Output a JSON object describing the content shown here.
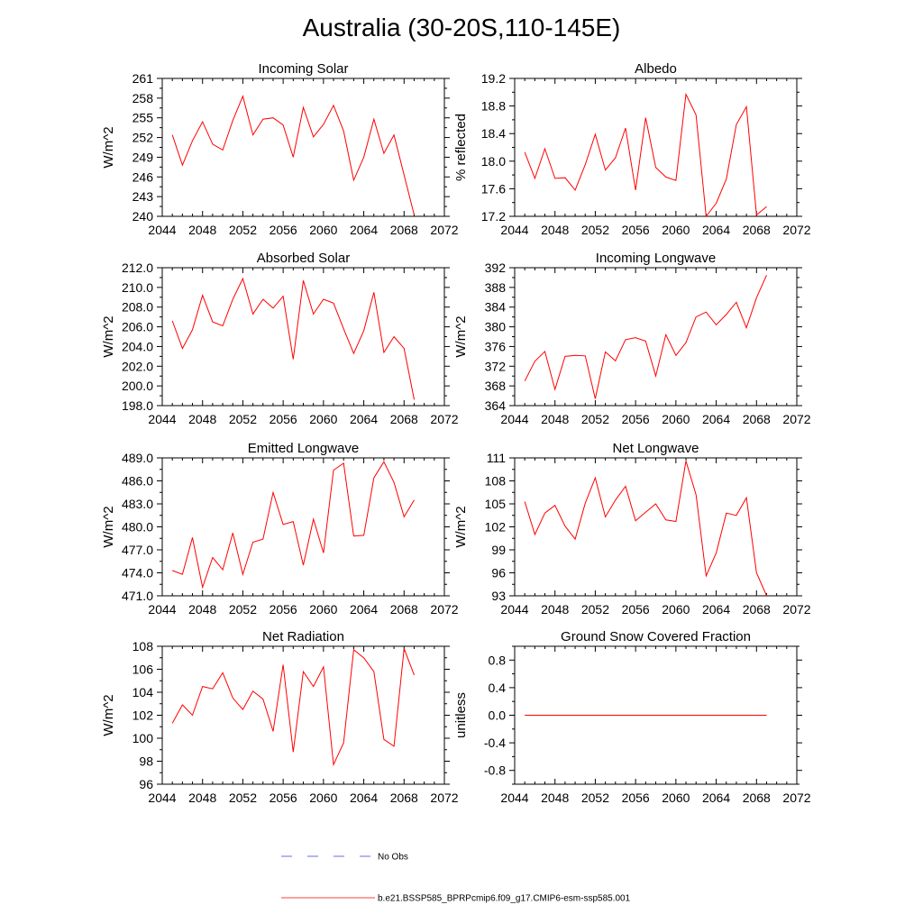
{
  "figure": {
    "title": "Australia (30-20S,110-145E)"
  },
  "legend": {
    "obs_label": "No Obs",
    "obs_color": "#3b3bd6",
    "model_label": "b.e21.BSSP585_BPRPcmip6.f09_g17.CMIP6-esm-ssp585.001",
    "model_color": "#ff0000"
  },
  "chart_data": [
    {
      "type": "line",
      "title": "Incoming Solar",
      "ylabel": "W/m^2",
      "xlim": [
        2044,
        2072
      ],
      "xticks": [
        2044,
        2048,
        2052,
        2056,
        2060,
        2064,
        2068,
        2072
      ],
      "ylim": [
        240,
        261
      ],
      "yticks": [
        "240",
        "243",
        "246",
        "249",
        "252",
        "255",
        "258",
        "261"
      ],
      "series": [
        {
          "x": [
            2045,
            2046,
            2047,
            2048,
            2049,
            2050,
            2051,
            2052,
            2053,
            2054,
            2055,
            2056,
            2057,
            2058,
            2059,
            2060,
            2061,
            2062,
            2063,
            2064,
            2065,
            2066,
            2067,
            2068,
            2069
          ],
          "values": [
            252.4,
            247.8,
            251.5,
            254.4,
            251.0,
            250.1,
            254.6,
            258.3,
            252.4,
            254.8,
            255.0,
            253.9,
            249.0,
            256.6,
            252.1,
            254.0,
            256.9,
            253.0,
            245.5,
            249.0,
            254.8,
            249.6,
            252.4,
            246.3,
            240.2
          ]
        }
      ]
    },
    {
      "type": "line",
      "title": "Albedo",
      "ylabel": "% reflected",
      "xlim": [
        2044,
        2072
      ],
      "xticks": [
        2044,
        2048,
        2052,
        2056,
        2060,
        2064,
        2068,
        2072
      ],
      "ylim": [
        17.2,
        19.2
      ],
      "yticks": [
        "17.2",
        "17.6",
        "18.0",
        "18.4",
        "18.8",
        "19.2"
      ],
      "series": [
        {
          "x": [
            2045,
            2046,
            2047,
            2048,
            2049,
            2050,
            2051,
            2052,
            2053,
            2054,
            2055,
            2056,
            2057,
            2058,
            2059,
            2060,
            2061,
            2062,
            2063,
            2064,
            2065,
            2066,
            2067,
            2068,
            2069
          ],
          "values": [
            18.13,
            17.75,
            18.18,
            17.75,
            17.76,
            17.58,
            17.95,
            18.39,
            17.87,
            18.05,
            18.48,
            17.58,
            18.63,
            17.91,
            17.77,
            17.72,
            18.97,
            18.67,
            17.2,
            17.39,
            17.74,
            18.53,
            18.79,
            17.22,
            17.34
          ]
        }
      ]
    },
    {
      "type": "line",
      "title": "Absorbed Solar",
      "ylabel": "W/m^2",
      "xlim": [
        2044,
        2072
      ],
      "xticks": [
        2044,
        2048,
        2052,
        2056,
        2060,
        2064,
        2068,
        2072
      ],
      "ylim": [
        198.0,
        212.0
      ],
      "yticks": [
        "198.0",
        "200.0",
        "202.0",
        "204.0",
        "206.0",
        "208.0",
        "210.0",
        "212.0"
      ],
      "series": [
        {
          "x": [
            2045,
            2046,
            2047,
            2048,
            2049,
            2050,
            2051,
            2052,
            2053,
            2054,
            2055,
            2056,
            2057,
            2058,
            2059,
            2060,
            2061,
            2062,
            2063,
            2064,
            2065,
            2066,
            2067,
            2068,
            2069
          ],
          "values": [
            206.6,
            203.8,
            205.7,
            209.2,
            206.5,
            206.1,
            208.8,
            210.9,
            207.3,
            208.8,
            207.9,
            209.1,
            202.7,
            210.7,
            207.3,
            208.8,
            208.4,
            205.8,
            203.3,
            205.6,
            209.5,
            203.4,
            205.0,
            203.8,
            198.6
          ]
        }
      ]
    },
    {
      "type": "line",
      "title": "Incoming Longwave",
      "ylabel": "W/m^2",
      "xlim": [
        2044,
        2072
      ],
      "xticks": [
        2044,
        2048,
        2052,
        2056,
        2060,
        2064,
        2068,
        2072
      ],
      "ylim": [
        364,
        392
      ],
      "yticks": [
        "364",
        "368",
        "372",
        "376",
        "380",
        "384",
        "388",
        "392"
      ],
      "series": [
        {
          "x": [
            2045,
            2046,
            2047,
            2048,
            2049,
            2050,
            2051,
            2052,
            2053,
            2054,
            2055,
            2056,
            2057,
            2058,
            2059,
            2060,
            2061,
            2062,
            2063,
            2064,
            2065,
            2066,
            2067,
            2068,
            2069
          ],
          "values": [
            369.0,
            373.0,
            375.0,
            367.3,
            374.0,
            374.2,
            374.1,
            365.4,
            374.9,
            373.1,
            377.4,
            377.8,
            377.1,
            370.0,
            378.4,
            374.2,
            376.8,
            382.0,
            383.0,
            380.4,
            382.5,
            385.0,
            379.8,
            385.9,
            390.5
          ]
        }
      ]
    },
    {
      "type": "line",
      "title": "Emitted Longwave",
      "ylabel": "W/m^2",
      "xlim": [
        2044,
        2072
      ],
      "xticks": [
        2044,
        2048,
        2052,
        2056,
        2060,
        2064,
        2068,
        2072
      ],
      "ylim": [
        471.0,
        489.0
      ],
      "yticks": [
        "471.0",
        "474.0",
        "477.0",
        "480.0",
        "483.0",
        "486.0",
        "489.0"
      ],
      "series": [
        {
          "x": [
            2045,
            2046,
            2047,
            2048,
            2049,
            2050,
            2051,
            2052,
            2053,
            2054,
            2055,
            2056,
            2057,
            2058,
            2059,
            2060,
            2061,
            2062,
            2063,
            2064,
            2065,
            2066,
            2067,
            2068,
            2069
          ],
          "values": [
            474.3,
            473.8,
            478.6,
            472.1,
            476.0,
            474.4,
            479.2,
            473.8,
            478.0,
            478.4,
            484.5,
            480.3,
            480.7,
            475.0,
            481.0,
            476.6,
            487.4,
            488.3,
            478.8,
            478.9,
            486.4,
            488.5,
            485.8,
            481.3,
            483.5
          ]
        }
      ]
    },
    {
      "type": "line",
      "title": "Net Longwave",
      "ylabel": "W/m^2",
      "xlim": [
        2044,
        2072
      ],
      "xticks": [
        2044,
        2048,
        2052,
        2056,
        2060,
        2064,
        2068,
        2072
      ],
      "ylim": [
        93,
        111
      ],
      "yticks": [
        "93",
        "96",
        "99",
        "102",
        "105",
        "108",
        "111"
      ],
      "series": [
        {
          "x": [
            2045,
            2046,
            2047,
            2048,
            2049,
            2050,
            2051,
            2052,
            2053,
            2054,
            2055,
            2056,
            2057,
            2058,
            2059,
            2060,
            2061,
            2062,
            2063,
            2064,
            2065,
            2066,
            2067,
            2068,
            2069
          ],
          "values": [
            105.3,
            101.0,
            103.8,
            104.8,
            102.1,
            100.4,
            105.1,
            108.4,
            103.3,
            105.5,
            107.3,
            102.8,
            103.9,
            105.0,
            102.9,
            102.7,
            110.6,
            106.2,
            95.6,
            98.6,
            103.8,
            103.5,
            105.8,
            96.0,
            93.0
          ]
        }
      ]
    },
    {
      "type": "line",
      "title": "Net Radiation",
      "ylabel": "W/m^2",
      "xlim": [
        2044,
        2072
      ],
      "xticks": [
        2044,
        2048,
        2052,
        2056,
        2060,
        2064,
        2068,
        2072
      ],
      "ylim": [
        96,
        108
      ],
      "yticks": [
        "96",
        "98",
        "100",
        "102",
        "104",
        "106",
        "108"
      ],
      "series": [
        {
          "x": [
            2045,
            2046,
            2047,
            2048,
            2049,
            2050,
            2051,
            2052,
            2053,
            2054,
            2055,
            2056,
            2057,
            2058,
            2059,
            2060,
            2061,
            2062,
            2063,
            2064,
            2065,
            2066,
            2067,
            2068,
            2069
          ],
          "values": [
            101.3,
            102.9,
            102.0,
            104.5,
            104.3,
            105.7,
            103.5,
            102.5,
            104.1,
            103.4,
            100.6,
            106.4,
            98.8,
            105.8,
            104.5,
            106.2,
            97.7,
            99.6,
            107.7,
            107.0,
            105.8,
            99.9,
            99.3,
            107.8,
            105.5
          ]
        }
      ]
    },
    {
      "type": "line",
      "title": "Ground Snow Covered Fraction",
      "ylabel": "unitless",
      "xlim": [
        2044,
        2072
      ],
      "xticks": [
        2044,
        2048,
        2052,
        2056,
        2060,
        2064,
        2068,
        2072
      ],
      "ylim": [
        -1.0,
        1.0
      ],
      "yticks": [
        "-0.8",
        "-0.4",
        "0.0",
        "0.4",
        "0.8"
      ],
      "series": [
        {
          "x": [
            2045,
            2046,
            2047,
            2048,
            2049,
            2050,
            2051,
            2052,
            2053,
            2054,
            2055,
            2056,
            2057,
            2058,
            2059,
            2060,
            2061,
            2062,
            2063,
            2064,
            2065,
            2066,
            2067,
            2068,
            2069
          ],
          "values": [
            0,
            0,
            0,
            0,
            0,
            0,
            0,
            0,
            0,
            0,
            0,
            0,
            0,
            0,
            0,
            0,
            0,
            0,
            0,
            0,
            0,
            0,
            0,
            0,
            0
          ]
        }
      ]
    }
  ]
}
